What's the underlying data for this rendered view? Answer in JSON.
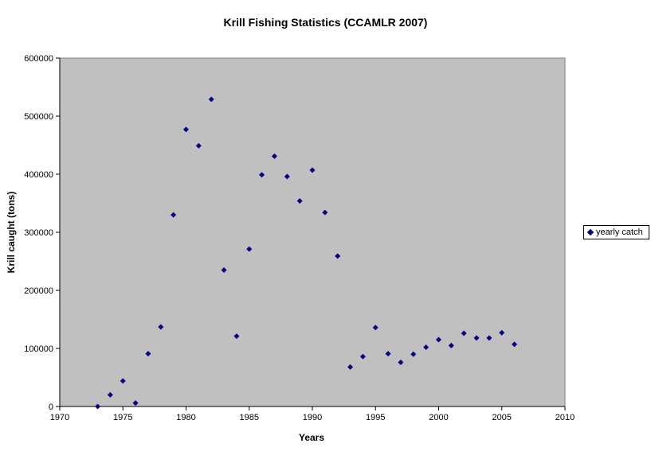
{
  "chart_data": {
    "type": "scatter",
    "title": "Krill Fishing Statistics (CCAMLR 2007)",
    "xlabel": "Years",
    "ylabel": "Krill caught (tons)",
    "xlim": [
      1970,
      2010
    ],
    "ylim": [
      0,
      600000
    ],
    "xticks": [
      1970,
      1975,
      1980,
      1985,
      1990,
      1995,
      2000,
      2005,
      2010
    ],
    "yticks": [
      0,
      100000,
      200000,
      300000,
      400000,
      500000,
      600000
    ],
    "plot_background": "#c0c0c0",
    "grid": false,
    "legend_position": "right",
    "series": [
      {
        "name": "yearly catch",
        "color": "#000080",
        "marker": "diamond",
        "x": [
          1973,
          1974,
          1975,
          1976,
          1977,
          1978,
          1979,
          1980,
          1981,
          1982,
          1983,
          1984,
          1985,
          1986,
          1987,
          1988,
          1989,
          1990,
          1991,
          1992,
          1993,
          1994,
          1995,
          1996,
          1997,
          1998,
          1999,
          2000,
          2001,
          2002,
          2003,
          2004,
          2005,
          2006
        ],
        "y": [
          0,
          20000,
          44000,
          6000,
          91000,
          137000,
          330000,
          477000,
          449000,
          529000,
          235000,
          121000,
          271000,
          399000,
          431000,
          396000,
          354000,
          407000,
          334000,
          259000,
          68000,
          86000,
          136000,
          91000,
          76000,
          90000,
          102000,
          115000,
          105000,
          126000,
          118000,
          118000,
          127000,
          107000
        ]
      }
    ]
  }
}
